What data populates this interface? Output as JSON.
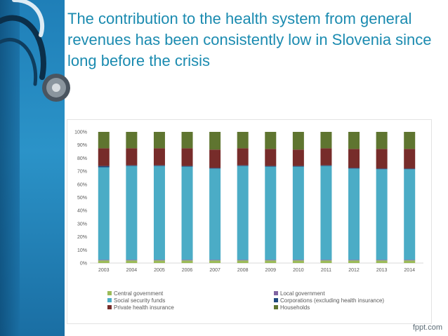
{
  "slide": {
    "title": "The contribution to the health system from general revenues has been consistently low in Slovenia since long before the crisis",
    "brand": "fppt.com"
  },
  "chart_data": {
    "type": "bar",
    "stacked": true,
    "categories": [
      "2003",
      "2004",
      "2005",
      "2006",
      "2007",
      "2008",
      "2009",
      "2010",
      "2011",
      "2012",
      "2013",
      "2014"
    ],
    "y_ticks": [
      "0%",
      "10%",
      "20%",
      "30%",
      "40%",
      "50%",
      "60%",
      "70%",
      "80%",
      "90%",
      "100%"
    ],
    "ylim": [
      0,
      100
    ],
    "grid": false,
    "legend_position": "bottom",
    "series": [
      {
        "name": "Central government",
        "color": "#9bbb59",
        "values": [
          2,
          2,
          2,
          2,
          2,
          2,
          2,
          2,
          2,
          2,
          2,
          2
        ]
      },
      {
        "name": "Local government",
        "color": "#8064a2",
        "values": [
          0.5,
          0.5,
          0.5,
          0.5,
          0.5,
          0.5,
          0.5,
          0.5,
          0.5,
          0.5,
          0.5,
          0.5
        ]
      },
      {
        "name": "Social security funds",
        "color": "#4bacc6",
        "values": [
          70.5,
          71.5,
          71.5,
          71,
          69.5,
          71.5,
          71,
          71,
          71.5,
          69.5,
          69,
          69
        ]
      },
      {
        "name": "Corporations (excluding health insurance)",
        "color": "#1f497d",
        "values": [
          1,
          0.5,
          0.5,
          0.5,
          0.5,
          0.5,
          0.5,
          0.5,
          0.5,
          0.5,
          0.5,
          0.5
        ]
      },
      {
        "name": "Private health insurance",
        "color": "#772c2a",
        "values": [
          13.5,
          13,
          13,
          13.5,
          14,
          13,
          13,
          12.5,
          13,
          14.5,
          15,
          15
        ]
      },
      {
        "name": "Households",
        "color": "#5f7530",
        "values": [
          12.5,
          12.5,
          12.5,
          12.5,
          13.5,
          12.5,
          13,
          13.5,
          12.5,
          13,
          13,
          13
        ]
      }
    ]
  }
}
